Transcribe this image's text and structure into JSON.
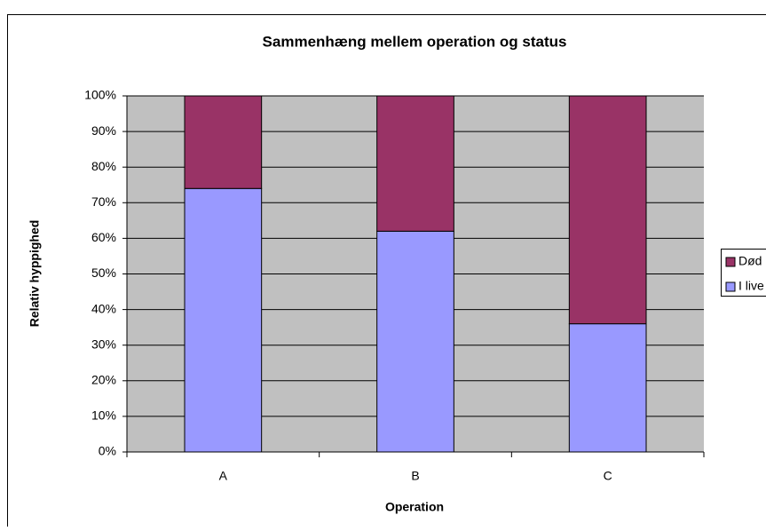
{
  "chart_data": {
    "type": "stacked_bar",
    "title": "Sammenhæng mellem operation og status",
    "x_label": "Operation",
    "y_label": "Relativ hyppighed",
    "categories": [
      "A",
      "B",
      "C"
    ],
    "series": [
      {
        "name": "I live",
        "color": "#9999ff",
        "values": [
          74,
          62,
          36
        ]
      },
      {
        "name": "Død",
        "color": "#993366",
        "values": [
          26,
          38,
          64
        ]
      }
    ],
    "ylim": [
      0,
      100
    ],
    "yticks": [
      {
        "value": 0,
        "label": "0%"
      },
      {
        "value": 10,
        "label": "10%"
      },
      {
        "value": 20,
        "label": "20%"
      },
      {
        "value": 30,
        "label": "30%"
      },
      {
        "value": 40,
        "label": "40%"
      },
      {
        "value": 50,
        "label": "50%"
      },
      {
        "value": 60,
        "label": "60%"
      },
      {
        "value": 70,
        "label": "70%"
      },
      {
        "value": 80,
        "label": "80%"
      },
      {
        "value": 90,
        "label": "90%"
      },
      {
        "value": 100,
        "label": "100%"
      }
    ],
    "grid": true,
    "legend": "right"
  }
}
